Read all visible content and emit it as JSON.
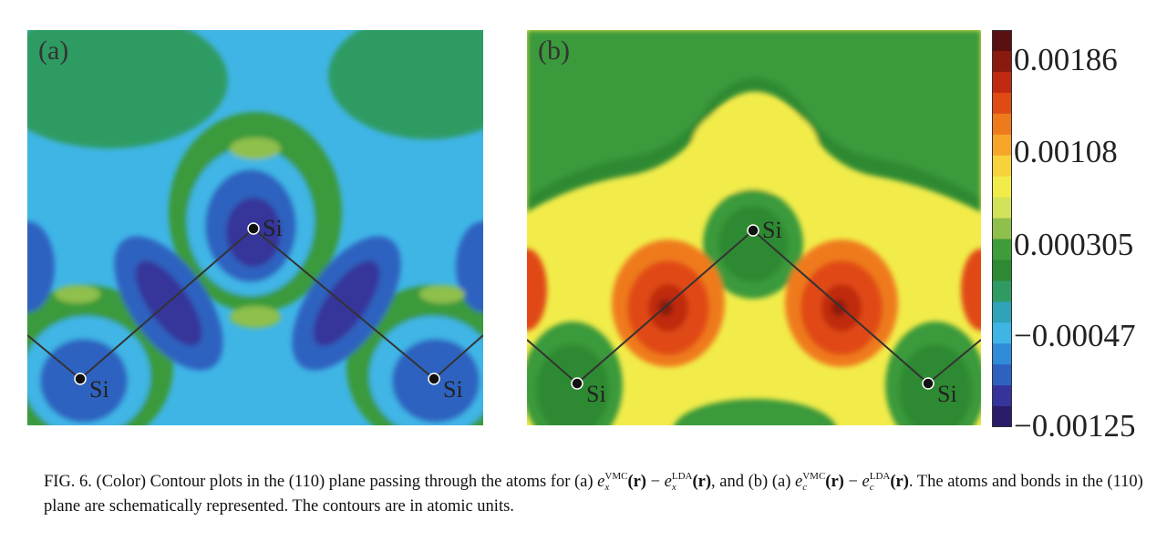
{
  "figure": {
    "panel_a": {
      "label": "(a)",
      "atoms": [
        {
          "label": "Si"
        },
        {
          "label": "Si"
        },
        {
          "label": "Si"
        }
      ]
    },
    "panel_b": {
      "label": "(b)",
      "atoms": [
        {
          "label": "Si"
        },
        {
          "label": "Si"
        },
        {
          "label": "Si"
        }
      ]
    },
    "colorbar": {
      "ticks": [
        "0.00186",
        "0.00108",
        "0.000305",
        "−0.00047",
        "−0.00125"
      ],
      "colors_top_to_bottom": [
        "#5a1010",
        "#8a1a0e",
        "#c02a10",
        "#e04a14",
        "#ef7a1c",
        "#f6a52a",
        "#f7d23a",
        "#f2ec4a",
        "#d2e35a",
        "#8fc04c",
        "#3f9c3a",
        "#2e8a32",
        "#2f9b62",
        "#2fa3b8",
        "#3fb5e6",
        "#2f8ad8",
        "#2f62c0",
        "#35349a",
        "#2a1c6a"
      ]
    },
    "caption": {
      "prefix": "FIG. 6. (Color) Contour plots in the (110) plane passing through the atoms for (a) ",
      "exp_a": {
        "e": "e",
        "sup1": "VMC",
        "sub1": "x",
        "r": "(r)",
        "minus": " − ",
        "sup2": "LDA",
        "sub2": "x"
      },
      "middle": ", and (b) (a) ",
      "exp_b": {
        "e": "e",
        "sup1": "VMC",
        "sub1": "c",
        "r": "(r)",
        "minus": " − ",
        "sup2": "LDA",
        "sub2": "c"
      },
      "suffix": ". The atoms and bonds in the (110) plane are schematically represented. The contours are in atomic units."
    }
  }
}
